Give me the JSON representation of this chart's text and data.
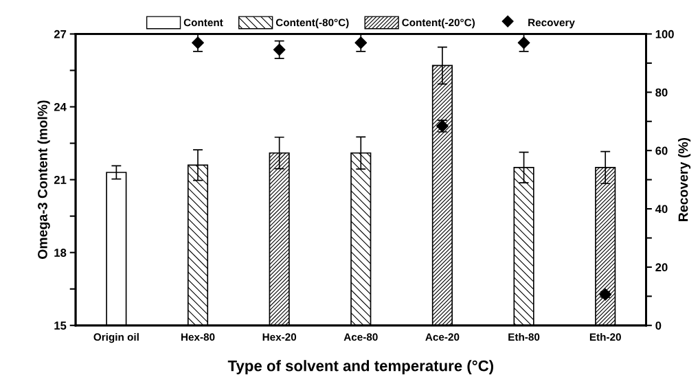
{
  "chart_data": {
    "type": "bar",
    "xlabel": "Type of solvent and temperature (°C)",
    "ylabel": "Omega-3 Content (mol%)",
    "y2label": "Recovery (%)",
    "categories": [
      "Origin oil",
      "Hex-80",
      "Hex-20",
      "Ace-80",
      "Ace-20",
      "Eth-80",
      "Eth-20"
    ],
    "series": [
      {
        "name": "Content",
        "color": "#ffffff",
        "values": [
          21.3,
          null,
          null,
          null,
          null,
          null,
          null
        ],
        "errors": [
          0.27,
          null,
          null,
          null,
          null,
          null,
          null
        ]
      },
      {
        "name": "Content(-80°C)",
        "color": "#000000",
        "values": [
          null,
          21.6,
          null,
          22.1,
          null,
          21.5,
          null
        ],
        "errors": [
          null,
          0.63,
          null,
          0.66,
          null,
          0.63,
          null
        ]
      },
      {
        "name": "Content(-20°C)",
        "color": "#000000",
        "values": [
          null,
          null,
          22.1,
          null,
          25.7,
          null,
          21.5
        ],
        "errors": [
          null,
          null,
          0.65,
          null,
          0.76,
          null,
          0.66
        ]
      },
      {
        "name": "Recovery",
        "type": "scatter",
        "axis": "y2",
        "marker": "diamond",
        "color": "#000000",
        "values": [
          null,
          97,
          94.6,
          97,
          68.4,
          97,
          10.6
        ],
        "errors": [
          null,
          3,
          3,
          3,
          2,
          3,
          1
        ]
      }
    ],
    "ylim": [
      15,
      27
    ],
    "yticks": [
      15,
      {
        "value": 16.5,
        "label": null
      },
      18,
      {
        "value": 19.5,
        "label": null
      },
      21,
      {
        "value": 22.5,
        "label": null
      },
      24,
      {
        "value": 25.5,
        "label": null
      },
      27
    ],
    "y2lim": [
      0,
      100
    ],
    "y2ticks": [
      0,
      {
        "value": 10,
        "label": null
      },
      20,
      {
        "value": 30,
        "label": null
      },
      40,
      {
        "value": 50,
        "label": null
      },
      60,
      {
        "value": 70,
        "label": null
      },
      80,
      {
        "value": 90,
        "label": null
      },
      100
    ],
    "legend": "top",
    "grid": false
  }
}
